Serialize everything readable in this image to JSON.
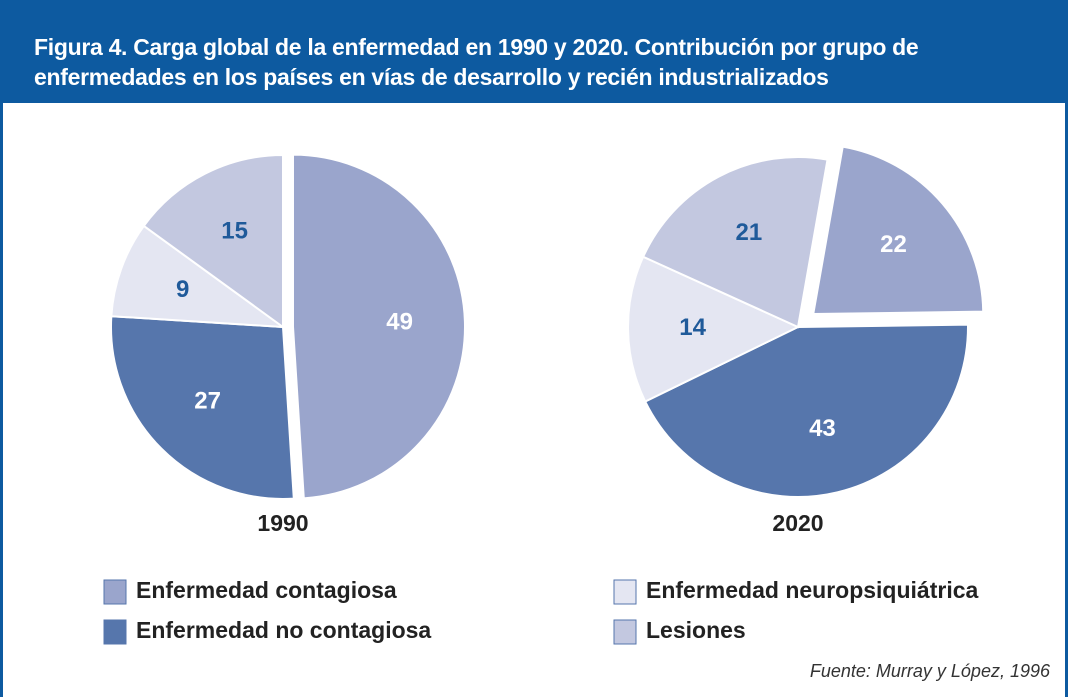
{
  "title": "Figura 4.  Carga global de la enfermedad en 1990 y 2020. Contribución por grupo de enfermedades en los países en vías de desarrollo y recién industrializados",
  "source": "Fuente: Murray y López, 1996",
  "categories": [
    "Enfermedad contagiosa",
    "Enfermedad no contagiosa",
    "Enfermedad neuropsiquiátrica",
    "Lesiones"
  ],
  "colors": [
    "#9aa5cc",
    "#5676ac",
    "#e4e6f2",
    "#c3c8e0"
  ],
  "chart_data": [
    {
      "type": "pie",
      "title": "1990",
      "values": [
        49,
        27,
        9,
        15
      ]
    },
    {
      "type": "pie",
      "title": "2020",
      "values": [
        22,
        43,
        14,
        21
      ]
    }
  ]
}
